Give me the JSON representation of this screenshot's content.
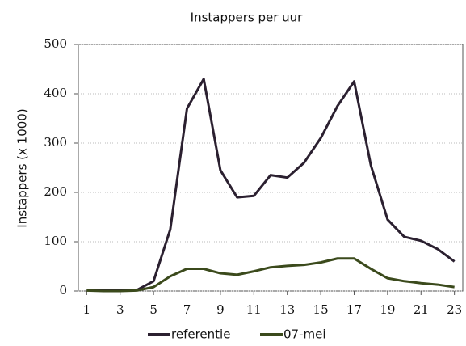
{
  "chart_data": {
    "type": "line",
    "title": "Instappers per uur",
    "y_label": "Instappers (x 1000)",
    "x": [
      1,
      2,
      3,
      4,
      5,
      6,
      7,
      8,
      9,
      10,
      11,
      12,
      13,
      14,
      15,
      16,
      17,
      18,
      19,
      20,
      21,
      22,
      23
    ],
    "series": [
      {
        "name": "referentie",
        "color": "#2b2030",
        "values": [
          2,
          1,
          1,
          2,
          20,
          125,
          370,
          430,
          245,
          190,
          193,
          235,
          230,
          260,
          310,
          375,
          425,
          255,
          145,
          110,
          102,
          85,
          60
        ]
      },
      {
        "name": "07-mei",
        "color": "#3b4a1c",
        "values": [
          1,
          0,
          0,
          1,
          8,
          30,
          45,
          45,
          36,
          33,
          40,
          48,
          51,
          53,
          58,
          66,
          66,
          45,
          26,
          20,
          16,
          13,
          8
        ]
      }
    ],
    "xlim": [
      0.5,
      23.5
    ],
    "xticks": [
      1,
      3,
      5,
      7,
      9,
      11,
      13,
      15,
      17,
      19,
      21,
      23
    ],
    "ylim": [
      0,
      500
    ],
    "yticks": [
      0,
      100,
      200,
      300,
      400,
      500
    ],
    "grid": true,
    "legend": "bottom"
  }
}
